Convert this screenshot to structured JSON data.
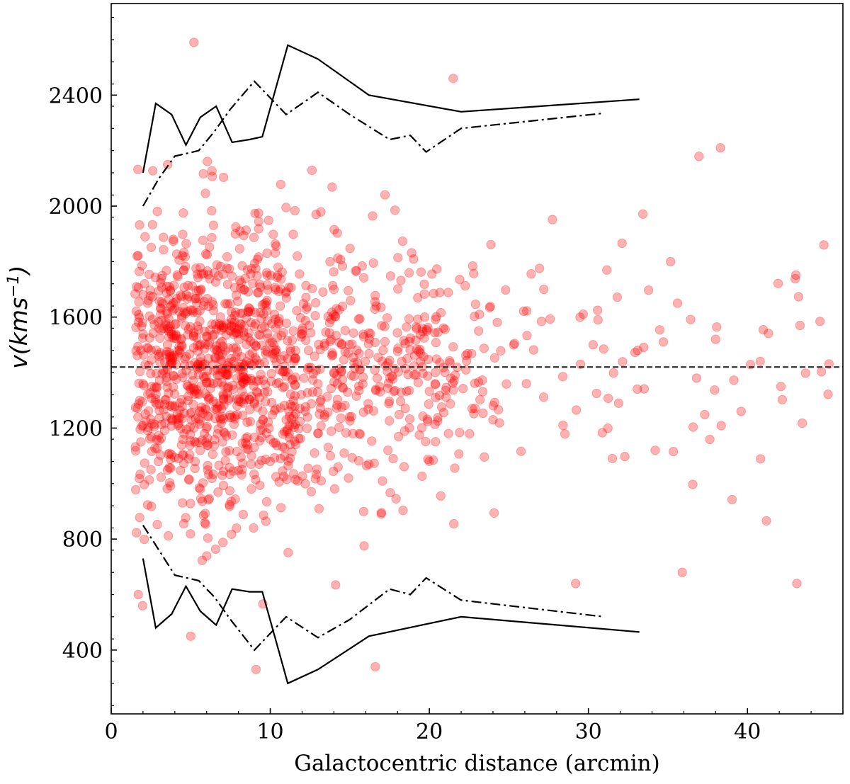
{
  "chart_data": {
    "type": "scatter",
    "title": "",
    "xlabel": "Galactocentric distance (arcmin)",
    "ylabel": "v(kms",
    "ylabel_sup": "−1",
    "ylabel_close": ")",
    "xlim": [
      0,
      46
    ],
    "ylim": [
      170,
      2730
    ],
    "xticks": [
      0,
      10,
      20,
      30,
      40
    ],
    "xtick_labels": [
      "0",
      "10",
      "20",
      "30",
      "40"
    ],
    "yticks": [
      400,
      800,
      1200,
      1600,
      2000,
      2400
    ],
    "ytick_labels": [
      "400",
      "800",
      "1200",
      "1600",
      "2000",
      "2400"
    ],
    "grid": false,
    "colors": {
      "points": "#ff0000",
      "lines": "#000000",
      "mean_line": "#333333"
    },
    "mean_velocity": 1420,
    "series": [
      {
        "style": "solid",
        "x": [
          2.0,
          2.8,
          3.8,
          4.7,
          5.6,
          6.6,
          7.6,
          8.7,
          9.5,
          11.1,
          13.0,
          16.2,
          22.0,
          33.2
        ],
        "y": [
          2120,
          2370,
          2330,
          2220,
          2320,
          2360,
          2230,
          2240,
          2250,
          2580,
          2530,
          2400,
          2340,
          2385
        ]
      },
      {
        "style": "dashdot",
        "x": [
          2.0,
          3.0,
          4.0,
          5.5,
          6.5,
          7.5,
          9.0,
          11.0,
          13.0,
          15.0,
          17.5,
          18.8,
          19.8,
          22.0,
          31.0
        ],
        "y": [
          2000,
          2100,
          2180,
          2200,
          2270,
          2350,
          2450,
          2330,
          2410,
          2330,
          2240,
          2255,
          2195,
          2280,
          2335
        ]
      },
      {
        "style": "solid",
        "x": [
          2.0,
          2.8,
          3.8,
          4.7,
          5.6,
          6.6,
          7.6,
          8.7,
          9.5,
          11.1,
          13.0,
          16.2,
          22.0,
          33.2
        ],
        "y": [
          730,
          480,
          530,
          630,
          540,
          490,
          620,
          610,
          610,
          280,
          330,
          450,
          520,
          465
        ]
      },
      {
        "style": "dashdot",
        "x": [
          2.0,
          3.0,
          4.0,
          5.5,
          6.5,
          7.5,
          9.0,
          11.0,
          13.0,
          15.0,
          17.5,
          18.8,
          19.8,
          22.0,
          31.0
        ],
        "y": [
          850,
          760,
          670,
          650,
          590,
          510,
          400,
          520,
          445,
          510,
          620,
          600,
          660,
          580,
          520
        ]
      }
    ],
    "scatter_sample": {
      "x": [
        1.8,
        2.1,
        2.5,
        3.0,
        3.4,
        3.9,
        4.2,
        4.8,
        5.2,
        5.6,
        6.1,
        6.5,
        7.0,
        7.4,
        7.8,
        8.3,
        8.8,
        9.3,
        9.8,
        10.4,
        11.0,
        11.7,
        12.4,
        13.2,
        14.0,
        15.1,
        16.3,
        17.4,
        18.6,
        19.7,
        20.4,
        21.2,
        22.3,
        23.1,
        24.0,
        25.3,
        26.1,
        27.2,
        28.4,
        29.5,
        30.6,
        31.9,
        33.1,
        34.2,
        35.6,
        36.8,
        38.0,
        39.6,
        40.8,
        42.1,
        43.3,
        44.8,
        5.2,
        21.5,
        38.3,
        9.1,
        16.6,
        35.9,
        43.1,
        29.2,
        1.7,
        5.0
      ],
      "y": [
        1300,
        1720,
        1050,
        1560,
        1400,
        1880,
        1210,
        1620,
        1340,
        980,
        1500,
        1760,
        1150,
        1420,
        1900,
        1290,
        1580,
        1070,
        1660,
        1360,
        1230,
        1820,
        1480,
        1010,
        1700,
        1390,
        1540,
        1120,
        1450,
        1600,
        1310,
        1180,
        1410,
        1550,
        1230,
        1500,
        1360,
        1700,
        1210,
        1430,
        1590,
        1290,
        1480,
        1120,
        1650,
        1380,
        1520,
        1260,
        1440,
        1350,
        1570,
        1860,
        2590,
        2460,
        2210,
        330,
        340,
        680,
        640,
        640,
        600,
        450
      ]
    }
  }
}
